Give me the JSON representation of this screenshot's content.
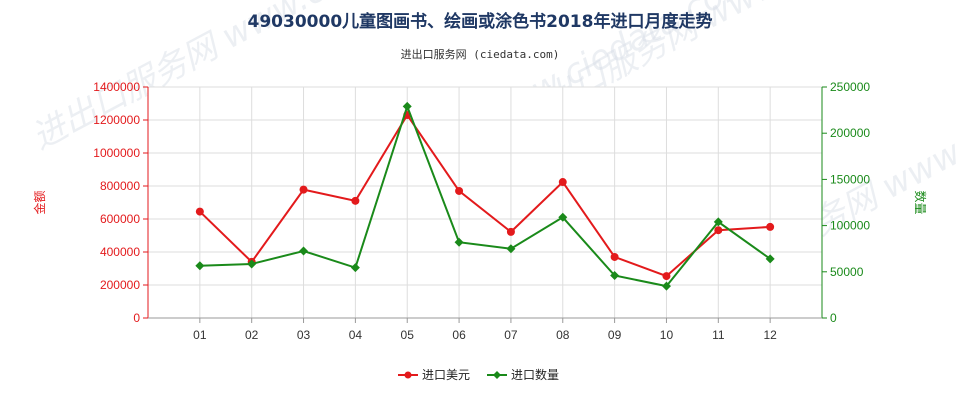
{
  "chart_data": {
    "type": "line",
    "title": "49030000儿童图画书、绘画或涂色书2018年进口月度走势",
    "subtitle": "进出口服务网 (ciedata.com)",
    "categories": [
      "01",
      "02",
      "03",
      "04",
      "05",
      "06",
      "07",
      "08",
      "09",
      "10",
      "11",
      "12"
    ],
    "y_left": {
      "label": "金额",
      "ylim": [
        0,
        1400000
      ],
      "ticks": [
        0,
        200000,
        400000,
        600000,
        800000,
        1000000,
        1200000,
        1400000
      ],
      "tick_labels": [
        "0",
        "200000",
        "400000",
        "600000",
        "800000",
        "1000000",
        "1200000",
        "1400000"
      ]
    },
    "y_right": {
      "label": "数量",
      "ylim": [
        0,
        250000
      ],
      "ticks": [
        0,
        50000,
        100000,
        150000,
        200000,
        250000
      ],
      "tick_labels": [
        "0",
        "50000",
        "100000",
        "150000",
        "200000",
        "250000"
      ]
    },
    "series": [
      {
        "name": "进口美元",
        "axis": "left",
        "color": "#e31a1c",
        "marker": "circle",
        "values": [
          645000,
          340000,
          778000,
          710000,
          1230000,
          770000,
          522000,
          824000,
          370000,
          254000,
          532000,
          552000
        ]
      },
      {
        "name": "进口数量",
        "axis": "right",
        "color": "#1a8a1a",
        "marker": "diamond",
        "values": [
          56500,
          58500,
          72500,
          54500,
          229000,
          82000,
          75000,
          109000,
          46000,
          34500,
          104000,
          64000
        ]
      }
    ],
    "grid": true,
    "legend_position": "bottom-center"
  },
  "watermark": {
    "text": "进出口服务网 www.ciedata.com"
  }
}
